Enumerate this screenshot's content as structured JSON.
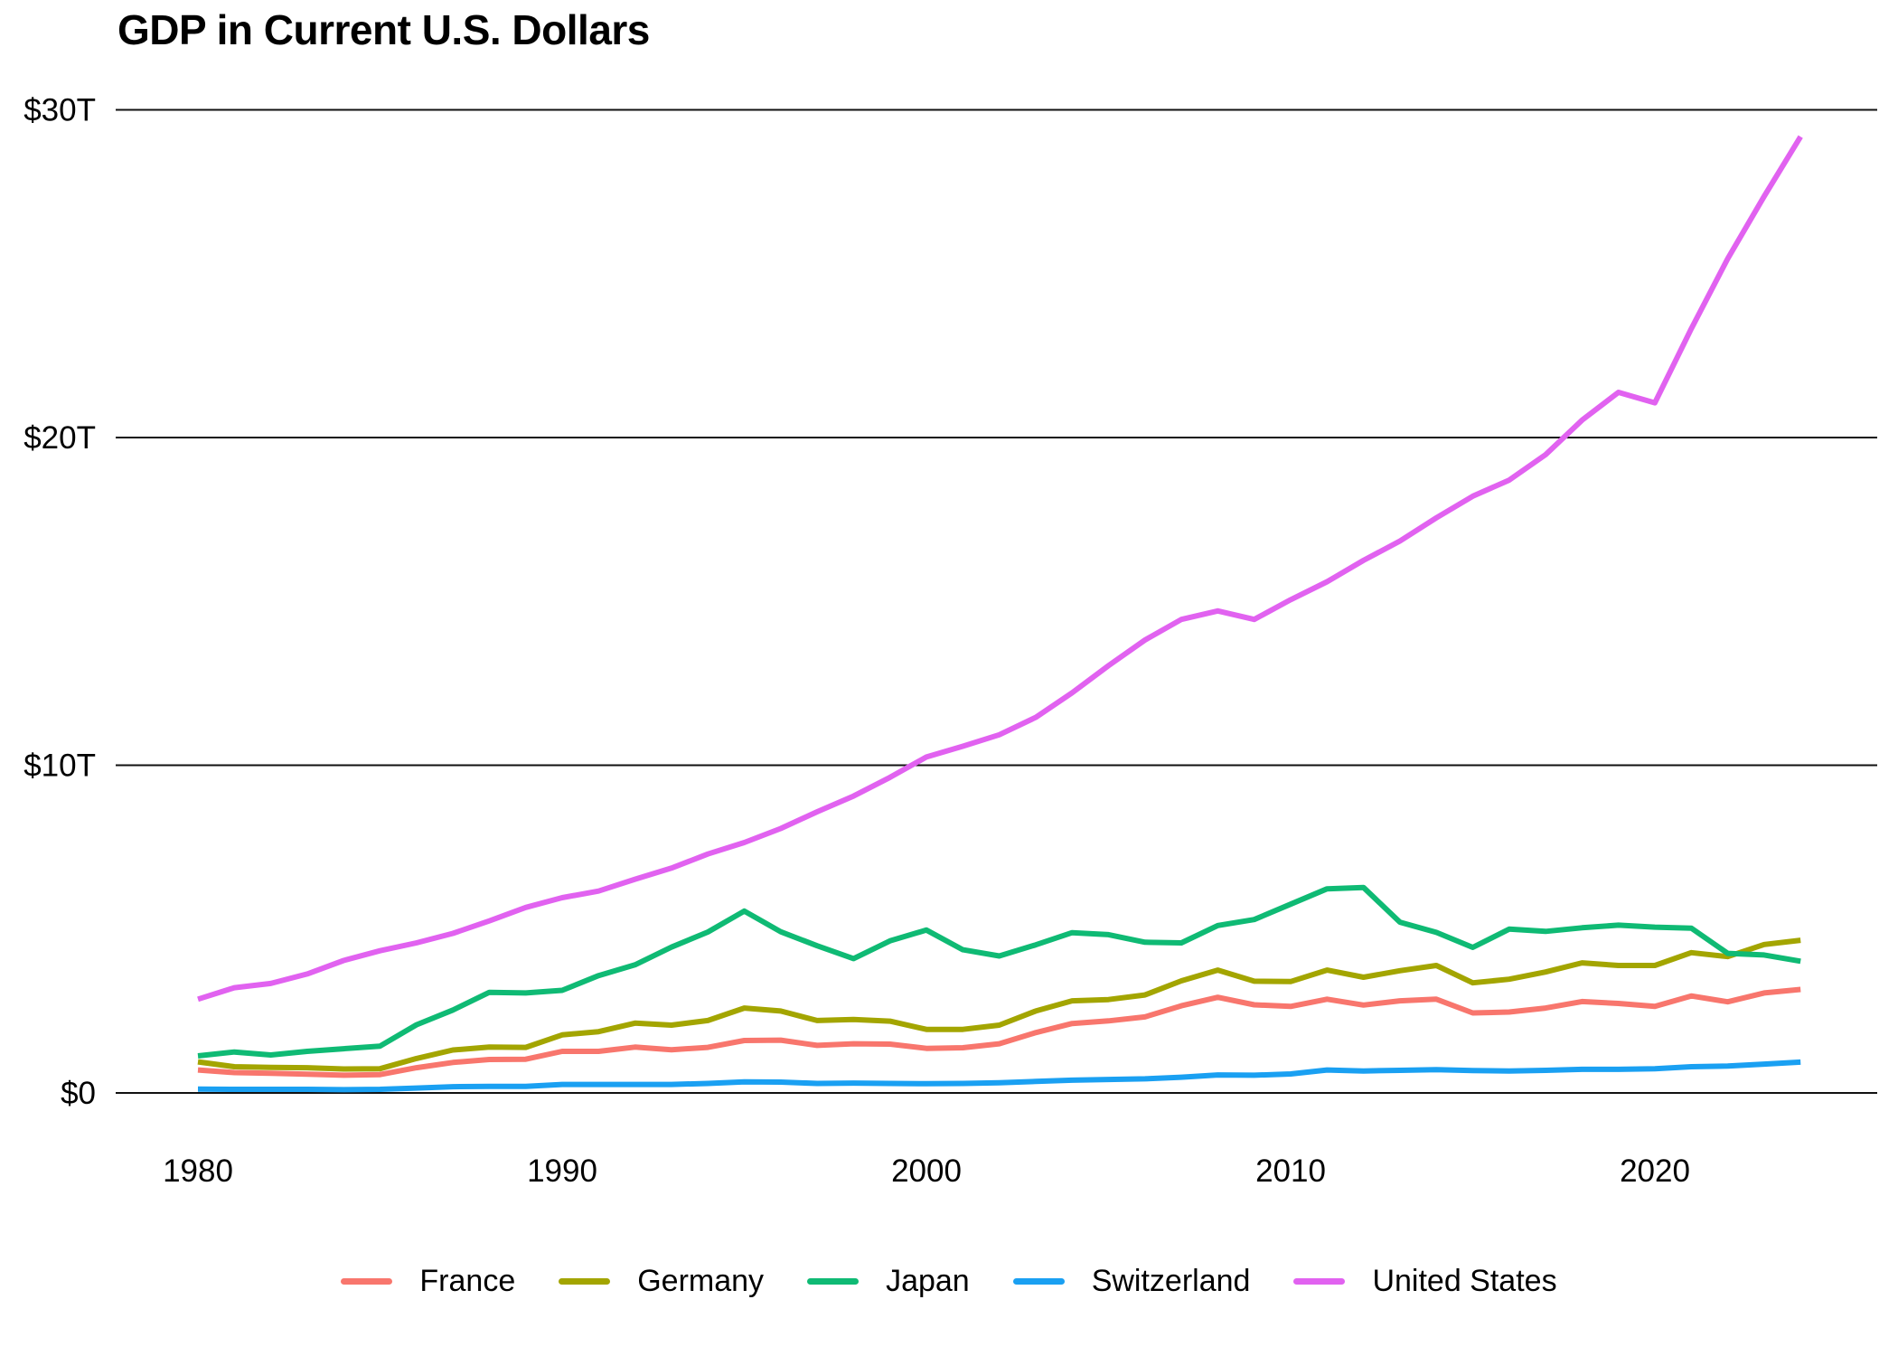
{
  "title": "GDP in Current U.S. Dollars",
  "chart_data": {
    "type": "line",
    "title": "GDP in Current U.S. Dollars",
    "xlabel": "",
    "ylabel": "",
    "xlim": [
      1980,
      2024
    ],
    "ylim": [
      0,
      30
    ],
    "grid": "horizontal",
    "legend_position": "bottom",
    "x": [
      1980,
      1981,
      1982,
      1983,
      1984,
      1985,
      1986,
      1987,
      1988,
      1989,
      1990,
      1991,
      1992,
      1993,
      1994,
      1995,
      1996,
      1997,
      1998,
      1999,
      2000,
      2001,
      2002,
      2003,
      2004,
      2005,
      2006,
      2007,
      2008,
      2009,
      2010,
      2011,
      2012,
      2013,
      2014,
      2015,
      2016,
      2017,
      2018,
      2019,
      2020,
      2021,
      2022,
      2023,
      2024
    ],
    "x_ticks": [
      {
        "label": "1980",
        "value": 1980
      },
      {
        "label": "1990",
        "value": 1990
      },
      {
        "label": "2000",
        "value": 2000
      },
      {
        "label": "2010",
        "value": 2010
      },
      {
        "label": "2020",
        "value": 2020
      }
    ],
    "y_ticks": [
      {
        "label": "$0",
        "value": 0
      },
      {
        "label": "$10T",
        "value": 10
      },
      {
        "label": "$20T",
        "value": 20
      },
      {
        "label": "$30T",
        "value": 30
      }
    ],
    "series": [
      {
        "name": "France",
        "color": "#F8766D",
        "values": [
          0.7,
          0.62,
          0.6,
          0.57,
          0.54,
          0.56,
          0.77,
          0.93,
          1.02,
          1.03,
          1.27,
          1.27,
          1.4,
          1.32,
          1.39,
          1.6,
          1.61,
          1.45,
          1.5,
          1.49,
          1.36,
          1.38,
          1.5,
          1.84,
          2.12,
          2.2,
          2.32,
          2.66,
          2.92,
          2.69,
          2.64,
          2.86,
          2.68,
          2.81,
          2.86,
          2.44,
          2.47,
          2.59,
          2.79,
          2.73,
          2.64,
          2.96,
          2.78,
          3.05,
          3.16
        ]
      },
      {
        "name": "Germany",
        "color": "#A3A500",
        "values": [
          0.95,
          0.8,
          0.78,
          0.77,
          0.73,
          0.74,
          1.05,
          1.31,
          1.4,
          1.39,
          1.77,
          1.87,
          2.13,
          2.07,
          2.21,
          2.59,
          2.5,
          2.21,
          2.24,
          2.19,
          1.94,
          1.94,
          2.07,
          2.5,
          2.81,
          2.85,
          2.99,
          3.42,
          3.75,
          3.41,
          3.4,
          3.75,
          3.53,
          3.73,
          3.89,
          3.36,
          3.47,
          3.69,
          3.97,
          3.89,
          3.89,
          4.28,
          4.16,
          4.53,
          4.66
        ]
      },
      {
        "name": "Japan",
        "color": "#0FBA74",
        "values": [
          1.13,
          1.25,
          1.16,
          1.27,
          1.35,
          1.43,
          2.08,
          2.53,
          3.07,
          3.05,
          3.13,
          3.58,
          3.91,
          4.45,
          4.91,
          5.55,
          4.92,
          4.49,
          4.1,
          4.64,
          4.97,
          4.37,
          4.18,
          4.52,
          4.89,
          4.83,
          4.6,
          4.58,
          5.11,
          5.29,
          5.76,
          6.23,
          6.27,
          5.21,
          4.9,
          4.44,
          5.0,
          4.93,
          5.04,
          5.12,
          5.06,
          5.03,
          4.26,
          4.21,
          4.02
        ]
      },
      {
        "name": "Switzerland",
        "color": "#1AA0F2",
        "values": [
          0.12,
          0.11,
          0.11,
          0.11,
          0.1,
          0.11,
          0.15,
          0.19,
          0.2,
          0.2,
          0.26,
          0.26,
          0.26,
          0.26,
          0.29,
          0.34,
          0.33,
          0.29,
          0.3,
          0.29,
          0.28,
          0.29,
          0.31,
          0.35,
          0.39,
          0.41,
          0.43,
          0.48,
          0.55,
          0.54,
          0.58,
          0.7,
          0.67,
          0.69,
          0.71,
          0.68,
          0.67,
          0.69,
          0.72,
          0.72,
          0.74,
          0.8,
          0.82,
          0.88,
          0.94
        ]
      },
      {
        "name": "United States",
        "color": "#E162F0",
        "values": [
          2.86,
          3.21,
          3.34,
          3.63,
          4.04,
          4.34,
          4.58,
          4.87,
          5.25,
          5.66,
          5.96,
          6.16,
          6.52,
          6.86,
          7.29,
          7.64,
          8.07,
          8.58,
          9.06,
          9.63,
          10.25,
          10.58,
          10.93,
          11.46,
          12.21,
          13.04,
          13.82,
          14.45,
          14.71,
          14.45,
          15.05,
          15.6,
          16.25,
          16.84,
          17.55,
          18.21,
          18.7,
          19.48,
          20.53,
          21.38,
          21.06,
          23.32,
          25.46,
          27.36,
          29.18
        ]
      }
    ]
  }
}
